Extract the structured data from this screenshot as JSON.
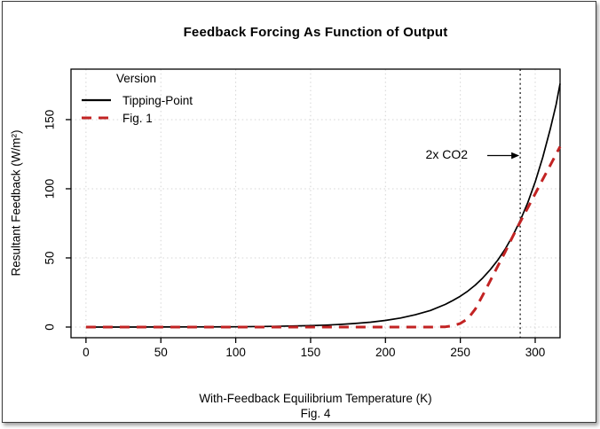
{
  "frame": {
    "background": "#ffffff",
    "border_color": "#3b3b3b"
  },
  "chart_data": {
    "type": "line",
    "title": "Feedback Forcing As Function of Output",
    "xlabel": "With-Feedback Equilibrium Temperature (K)",
    "ylabel": "Resultant Feedback (W/m²)",
    "caption": "Fig. 4",
    "xlim": [
      -10,
      316.6
    ],
    "ylim": [
      -7.7,
      186.5
    ],
    "x_ticks": [
      0,
      50,
      100,
      150,
      200,
      250,
      300
    ],
    "y_ticks": [
      0,
      50,
      100,
      150
    ],
    "grid": {
      "on": true,
      "style": "dotted",
      "color": "#d4d4d4"
    },
    "axis_color": "#000000",
    "legend": {
      "title": "Version",
      "position": "top-left"
    },
    "series": [
      {
        "name": "Tipping-Point",
        "color": "#000000",
        "style": "solid",
        "width": 1.7,
        "x": [
          0,
          25,
          50,
          75,
          100,
          125,
          150,
          160,
          170,
          180,
          190,
          200,
          210,
          220,
          230,
          240,
          245,
          250,
          255,
          260,
          265,
          270,
          275,
          280,
          285,
          290,
          295,
          300,
          305,
          310,
          314,
          316.6
        ],
        "y": [
          0,
          0,
          0.05,
          0.1,
          0.2,
          0.5,
          1.0,
          1.4,
          1.9,
          2.6,
          3.5,
          4.8,
          6.5,
          8.9,
          12.0,
          16.4,
          19.2,
          22.3,
          26.0,
          30.4,
          35.5,
          41.5,
          48.4,
          56.5,
          66.0,
          77.0,
          89.9,
          105.0,
          122.5,
          143.0,
          161.0,
          176.0
        ]
      },
      {
        "name": "Fig. 1",
        "color": "#c22323",
        "style": "dashed",
        "width": 3,
        "x": [
          0,
          50,
          100,
          150,
          200,
          230,
          240,
          245,
          250,
          255,
          260,
          265,
          270,
          275,
          280,
          285,
          290,
          295,
          300,
          305,
          310,
          314,
          316.6
        ],
        "y": [
          0,
          0,
          0,
          0,
          0,
          0,
          0.2,
          0.9,
          2.6,
          6.0,
          13.0,
          23.0,
          33.5,
          44.0,
          54.5,
          65.5,
          76.0,
          86.2,
          96.4,
          106.7,
          116.9,
          125.1,
          130.5
        ]
      }
    ],
    "annotation": {
      "label": "2x CO2",
      "line_x": 290,
      "line_style": "dotted",
      "line_color": "#2a2a2a",
      "arrow_y": 124,
      "arrow_from_x": 268,
      "arrow_color": "#000000"
    }
  }
}
